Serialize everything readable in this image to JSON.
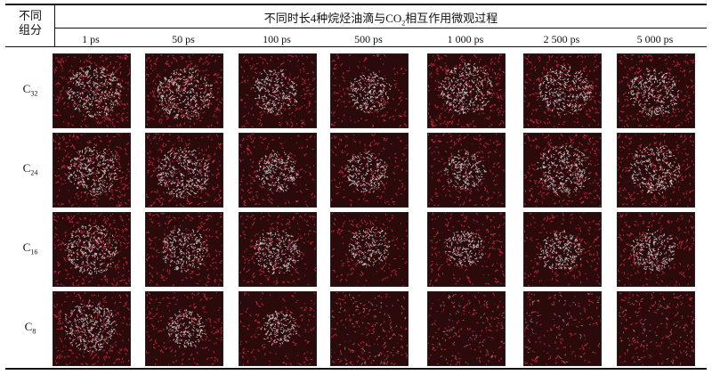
{
  "header": {
    "group_label_line1": "不同",
    "group_label_line2": "组分",
    "title_prefix": "不同时长4种烷烃油滴与CO",
    "title_sub": "2",
    "title_suffix": "相互作用微观过程"
  },
  "times": [
    "1 ps",
    "50 ps",
    "100 ps",
    "500 ps",
    "1 000 ps",
    "2 500 ps",
    "5 000 ps"
  ],
  "rows": [
    {
      "base": "C",
      "sub": "32",
      "core": [
        0.75,
        0.78,
        0.55,
        0.45,
        0.72,
        0.7,
        0.65
      ],
      "red": [
        0.85,
        0.85,
        0.6,
        0.45,
        0.85,
        0.75,
        0.7
      ]
    },
    {
      "base": "C",
      "sub": "24",
      "core": [
        0.7,
        0.72,
        0.45,
        0.45,
        0.4,
        0.7,
        0.65
      ],
      "red": [
        0.8,
        0.8,
        0.5,
        0.45,
        0.5,
        0.75,
        0.7
      ]
    },
    {
      "base": "C",
      "sub": "16",
      "core": [
        0.7,
        0.55,
        0.55,
        0.4,
        0.35,
        0.45,
        0.5
      ],
      "red": [
        0.85,
        0.6,
        0.6,
        0.45,
        0.55,
        0.5,
        0.6
      ]
    },
    {
      "base": "C",
      "sub": "8",
      "core": [
        0.7,
        0.35,
        0.3,
        0.2,
        0.15,
        0.1,
        0.1
      ],
      "red": [
        0.75,
        0.5,
        0.4,
        0.35,
        0.3,
        0.3,
        0.35
      ]
    }
  ],
  "colors": {
    "background": "#2a0a0b",
    "co2": "#c8283a",
    "oil": "#dcdcdc"
  }
}
